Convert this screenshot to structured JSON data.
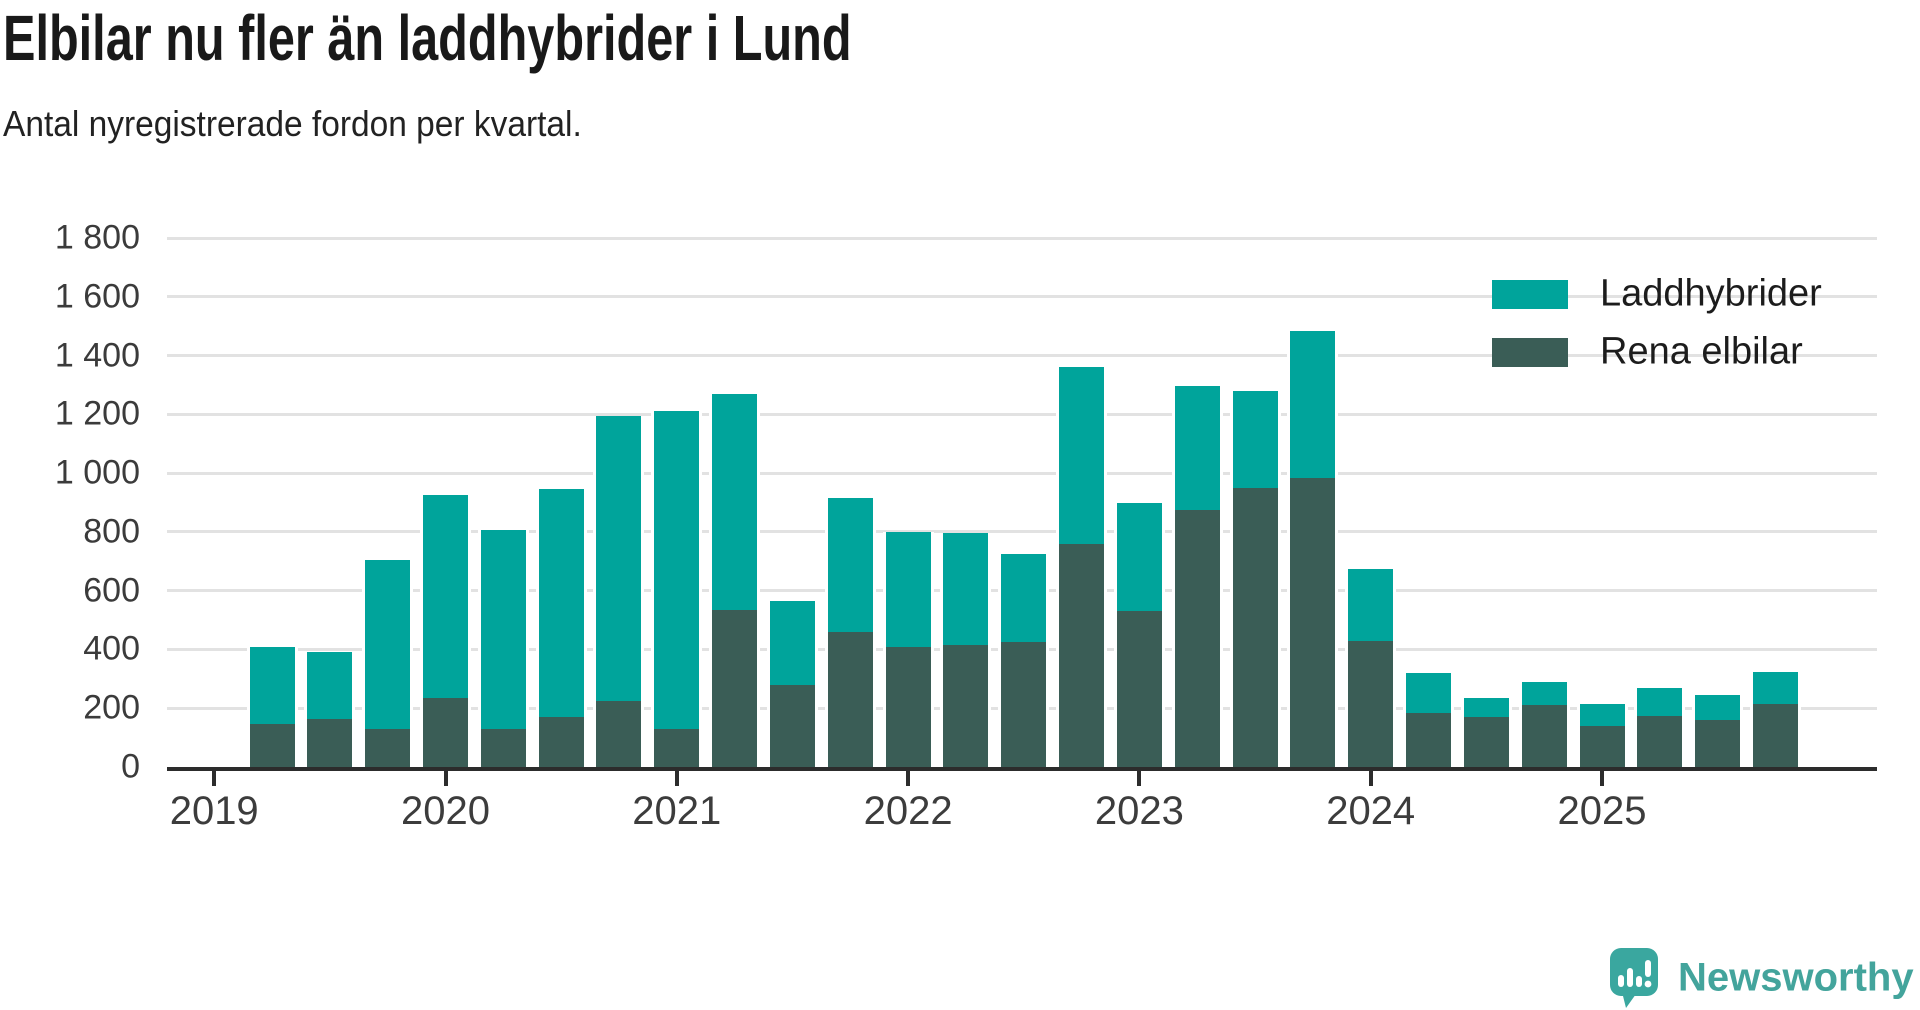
{
  "header": {
    "title": "Elbilar nu fler än laddhybrider i Lund",
    "subtitle": "Antal nyregistrerade fordon per kvartal."
  },
  "legend": {
    "position": "top-right",
    "items": [
      {
        "label": "Laddhybrider",
        "color": "#00a49b"
      },
      {
        "label": "Rena elbilar",
        "color": "#3a5d56"
      }
    ]
  },
  "chart_data": {
    "type": "bar",
    "stacked": true,
    "title": "Elbilar nu fler än laddhybrider i Lund",
    "subtitle": "Antal nyregistrerade fordon per kvartal.",
    "x_quarters": [
      "2019-Q2",
      "2019-Q3",
      "2019-Q4",
      "2020-Q1",
      "2020-Q2",
      "2020-Q3",
      "2020-Q4",
      "2021-Q1",
      "2021-Q2",
      "2021-Q3",
      "2021-Q4",
      "2022-Q1",
      "2022-Q2",
      "2022-Q3",
      "2022-Q4",
      "2023-Q1",
      "2023-Q2",
      "2023-Q3",
      "2023-Q4",
      "2024-Q1",
      "2024-Q2",
      "2024-Q3",
      "2024-Q4",
      "2025-Q1",
      "2025-Q2",
      "2025-Q3",
      "2025-Q4"
    ],
    "series": [
      {
        "name": "Rena elbilar",
        "color": "#3a5d56",
        "values": [
          145,
          165,
          130,
          235,
          130,
          170,
          225,
          130,
          535,
          280,
          460,
          410,
          415,
          425,
          760,
          530,
          875,
          950,
          985,
          430,
          185,
          170,
          210,
          140,
          175,
          160,
          215
        ]
      },
      {
        "name": "Laddhybrider",
        "color": "#00a49b",
        "values": [
          265,
          225,
          575,
          690,
          675,
          775,
          970,
          1080,
          735,
          285,
          455,
          390,
          380,
          300,
          600,
          370,
          420,
          330,
          500,
          245,
          135,
          65,
          80,
          75,
          95,
          85,
          110
        ]
      }
    ],
    "totals": [
      410,
      390,
      705,
      925,
      805,
      945,
      1195,
      1210,
      1270,
      565,
      915,
      800,
      795,
      725,
      1360,
      900,
      1295,
      1280,
      1485,
      675,
      320,
      235,
      290,
      215,
      270,
      245,
      325
    ],
    "ylim": [
      0,
      1800
    ],
    "ytick_step": 200,
    "ytick_labels": [
      "0",
      "200",
      "400",
      "600",
      "800",
      "1 000",
      "1 200",
      "1 400",
      "1 600",
      "1 800"
    ],
    "xtick_labels": [
      "2019",
      "2020",
      "2021",
      "2022",
      "2023",
      "2024",
      "2025"
    ],
    "grid": "horizontal",
    "legend_position": "top-right"
  },
  "branding": {
    "logo_text": "Newsworthy",
    "logo_icon": "newsworthy-speech-bubble-chart-icon",
    "brand_color": "#3aa79f"
  }
}
